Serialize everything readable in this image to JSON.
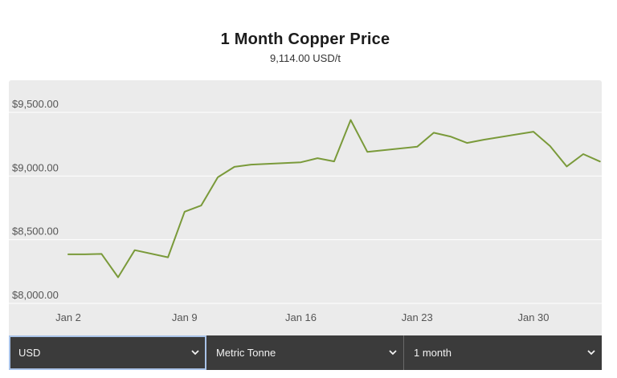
{
  "header": {
    "title": "1 Month Copper Price",
    "subtitle": "9,114.00 USD/t"
  },
  "chart_data": {
    "type": "line",
    "title": "1 Month Copper Price",
    "subtitle": "9,114.00 USD/t",
    "xlabel": "",
    "ylabel": "",
    "grid": true,
    "legend": "none",
    "colors": {
      "line": "#7a9a3a",
      "panel_bg": "#ebebeb",
      "grid": "#ffffff"
    },
    "ylim": [
      8000,
      9700
    ],
    "y_ticks": [
      8000,
      8500,
      9000,
      9500
    ],
    "y_tick_labels": [
      "$8,000.00",
      "$8,500.00",
      "$9,000.00",
      "$9,500.00"
    ],
    "x_ticks": [
      2,
      9,
      16,
      23,
      30
    ],
    "x_tick_labels": [
      "Jan 2",
      "Jan 9",
      "Jan 16",
      "Jan 23",
      "Jan 30"
    ],
    "series": [
      {
        "x": [
          2,
          3,
          4,
          5,
          6,
          8,
          9,
          10,
          11,
          12,
          13,
          16,
          17,
          18,
          19,
          20,
          23,
          24,
          25,
          26,
          27,
          30,
          31,
          32,
          33,
          34
        ],
        "values": [
          8385,
          8385,
          8388,
          8205,
          8418,
          8362,
          8720,
          8768,
          8990,
          9072,
          9090,
          9108,
          9140,
          9115,
          9440,
          9190,
          9230,
          9340,
          9310,
          9260,
          9285,
          9348,
          9235,
          9075,
          9172,
          9114
        ]
      }
    ]
  },
  "controls": {
    "currency": "USD",
    "unit": "Metric Tonne",
    "period": "1 month"
  }
}
